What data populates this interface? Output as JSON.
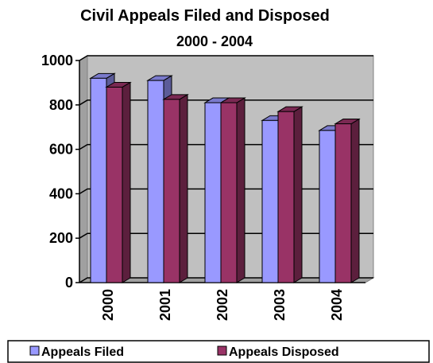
{
  "chart_data": {
    "type": "bar3d",
    "title": "Civil Appeals Filed and Disposed",
    "subtitle": "2000 - 2004",
    "categories": [
      "2000",
      "2001",
      "2002",
      "2003",
      "2004"
    ],
    "series": [
      {
        "name": "Appeals Filed",
        "color": "#9999ff",
        "values": [
          920,
          910,
          810,
          730,
          685
        ]
      },
      {
        "name": "Appeals Disposed",
        "color": "#993366",
        "values": [
          880,
          825,
          810,
          770,
          715
        ]
      }
    ],
    "ylim": [
      0,
      1000
    ],
    "yticks": [
      0,
      200,
      400,
      600,
      800,
      1000
    ],
    "grid": true
  }
}
